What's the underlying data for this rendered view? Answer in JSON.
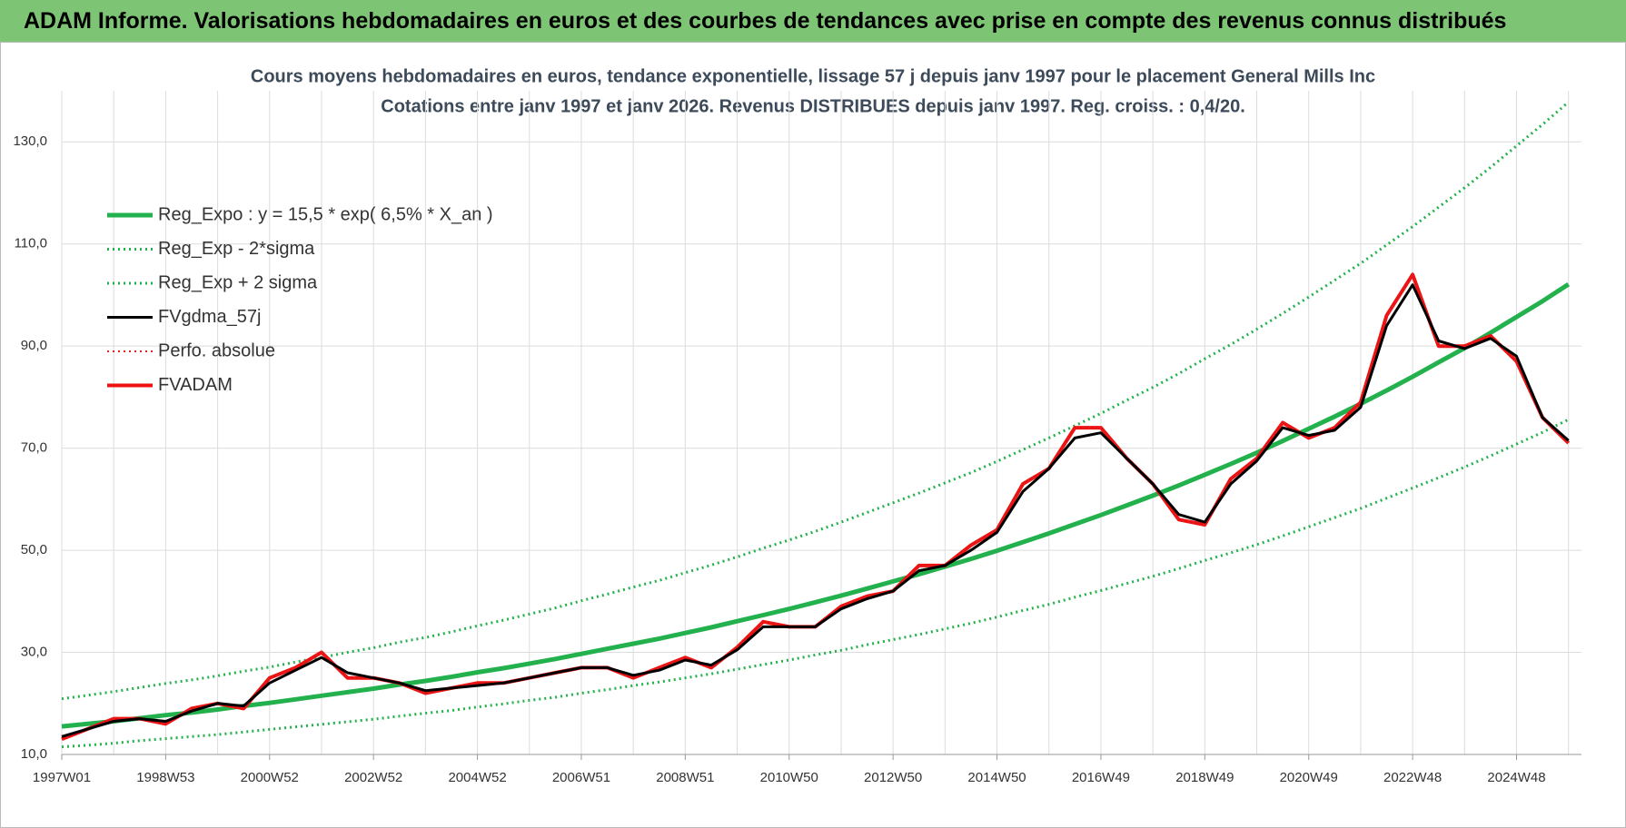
{
  "header": {
    "title": "ADAM Informe. Valorisations hebdomadaires en euros et des courbes de tendances avec prise en compte des revenus connus distribués"
  },
  "chart_data": {
    "type": "line",
    "title": "Cours moyens hebdomadaires en euros, tendance exponentielle, lissage 57 j depuis janv 1997  pour le placement General Mills Inc",
    "subtitle": "Cotations entre janv 1997 et janv 2026. Revenus DISTRIBUES depuis janv 1997.  Reg. croiss. : 0,4/20.",
    "categories": [
      "1997W01",
      null,
      null,
      null,
      "1998W53",
      null,
      null,
      null,
      "2000W52",
      null,
      null,
      null,
      "2002W52",
      null,
      null,
      null,
      "2004W52",
      null,
      null,
      null,
      "2006W51",
      null,
      null,
      null,
      "2008W51",
      null,
      null,
      null,
      "2010W50",
      null,
      null,
      null,
      "2012W50",
      null,
      null,
      null,
      "2014W50",
      null,
      null,
      null,
      "2016W49",
      null,
      null,
      null,
      "2018W49",
      null,
      null,
      null,
      "2020W49",
      null,
      null,
      null,
      "2022W48",
      null,
      null,
      null,
      "2024W48",
      null,
      null
    ],
    "ylim": [
      10,
      140
    ],
    "yticks": [
      {
        "value": 10,
        "label": "10,0"
      },
      {
        "value": 30,
        "label": "30,0"
      },
      {
        "value": 50,
        "label": "50,0"
      },
      {
        "value": 70,
        "label": "70,0"
      },
      {
        "value": 90,
        "label": "90,0"
      },
      {
        "value": 110,
        "label": "110,0"
      },
      {
        "value": 130,
        "label": "130,0"
      }
    ],
    "grid": true,
    "legend": "upper left",
    "series": [
      {
        "name": "Reg_Expo : y = 15,5 * exp( 6,5% *  X_an )",
        "color": "#22b14c",
        "style": "solid",
        "width": 5,
        "values": [
          15.5,
          16.0,
          16.5,
          17.1,
          17.7,
          18.2,
          18.8,
          19.5,
          20.1,
          20.8,
          21.5,
          22.2,
          22.9,
          23.7,
          24.4,
          25.2,
          26.1,
          26.9,
          27.8,
          28.7,
          29.7,
          30.7,
          31.7,
          32.7,
          33.8,
          34.9,
          36.1,
          37.3,
          38.5,
          39.8,
          41.1,
          42.5,
          43.9,
          45.3,
          46.8,
          48.3,
          49.9,
          51.6,
          53.3,
          55.1,
          56.9,
          58.8,
          60.7,
          62.7,
          64.8,
          66.9,
          69.1,
          71.4,
          73.8,
          76.2,
          78.7,
          81.3,
          84.0,
          86.8,
          89.6,
          92.6,
          95.7,
          98.8,
          102.1
        ]
      },
      {
        "name": "Reg_Exp - 2*sigma",
        "color": "#22b14c",
        "style": "dotted",
        "width": 3,
        "values": [
          11.5,
          11.8,
          12.2,
          12.7,
          13.1,
          13.5,
          13.9,
          14.4,
          14.9,
          15.4,
          15.9,
          16.4,
          16.9,
          17.5,
          18.1,
          18.6,
          19.3,
          19.9,
          20.6,
          21.2,
          22.0,
          22.7,
          23.5,
          24.2,
          25.0,
          25.8,
          26.7,
          27.6,
          28.5,
          29.5,
          30.4,
          31.5,
          32.5,
          33.5,
          34.6,
          35.7,
          36.9,
          38.2,
          39.4,
          40.8,
          42.1,
          43.5,
          44.9,
          46.4,
          48.0,
          49.5,
          51.1,
          52.8,
          54.6,
          56.4,
          58.2,
          60.2,
          62.2,
          64.2,
          66.3,
          68.5,
          70.8,
          73.1,
          75.6
        ]
      },
      {
        "name": "Reg_Exp + 2 sigma",
        "color": "#22b14c",
        "style": "dotted",
        "width": 3,
        "values": [
          20.9,
          21.6,
          22.3,
          23.1,
          23.9,
          24.6,
          25.4,
          26.3,
          27.1,
          28.1,
          29.0,
          30.0,
          30.9,
          32.0,
          32.9,
          34.0,
          35.2,
          36.3,
          37.5,
          38.7,
          40.1,
          41.4,
          42.8,
          44.1,
          45.6,
          47.1,
          48.7,
          50.4,
          52.0,
          53.7,
          55.5,
          57.4,
          59.3,
          61.2,
          63.2,
          65.2,
          67.4,
          69.7,
          72.0,
          74.4,
          76.8,
          79.4,
          81.9,
          84.6,
          87.5,
          90.3,
          93.3,
          96.4,
          99.6,
          102.9,
          106.2,
          109.8,
          113.4,
          117.2,
          121.0,
          125.0,
          129.2,
          133.4,
          137.8
        ]
      },
      {
        "name": "FVgdma_57j",
        "color": "#000000",
        "style": "solid",
        "width": 3,
        "values": [
          13.5,
          15,
          16.5,
          17,
          16.5,
          18.5,
          20,
          19.5,
          24,
          26.5,
          29,
          26,
          25,
          24,
          22.5,
          23,
          23.5,
          24,
          25,
          26,
          27,
          27,
          25.5,
          26.5,
          28.5,
          27.5,
          30.5,
          35,
          35,
          35,
          38.5,
          40.5,
          42,
          46,
          47,
          50,
          53.5,
          61.5,
          66,
          72,
          73,
          68,
          63,
          57,
          55.5,
          63,
          67.5,
          74,
          72.5,
          73.5,
          78,
          94,
          102,
          91,
          89.5,
          91.5,
          88,
          76,
          71.5
        ]
      },
      {
        "name": "Perfo. absolue",
        "color": "#e02020",
        "style": "dotted",
        "width": 2,
        "values": [
          13,
          15,
          17,
          17,
          16,
          19,
          20,
          19,
          25,
          27,
          30,
          25,
          25,
          24,
          22,
          23,
          24,
          24,
          25,
          26,
          27,
          27,
          25,
          27,
          29,
          27,
          31,
          36,
          35,
          35,
          39,
          41,
          42,
          47,
          47,
          51,
          54,
          63,
          66,
          74,
          74,
          68,
          63,
          56,
          55,
          64,
          68,
          75,
          72,
          74,
          79,
          96,
          104,
          90,
          90,
          92,
          87,
          76,
          71
        ]
      },
      {
        "name": "FVADAM",
        "color": "#ee1111",
        "style": "solid",
        "width": 4,
        "values": [
          13,
          15,
          17,
          17,
          16,
          19,
          20,
          19,
          25,
          27,
          30,
          25,
          25,
          24,
          22,
          23,
          24,
          24,
          25,
          26,
          27,
          27,
          25,
          27,
          29,
          27,
          31,
          36,
          35,
          35,
          39,
          41,
          42,
          47,
          47,
          51,
          54,
          63,
          66,
          74,
          74,
          68,
          63,
          56,
          55,
          64,
          68,
          75,
          72,
          74,
          79,
          96,
          104,
          90,
          90,
          92,
          87,
          76,
          71
        ]
      }
    ]
  }
}
